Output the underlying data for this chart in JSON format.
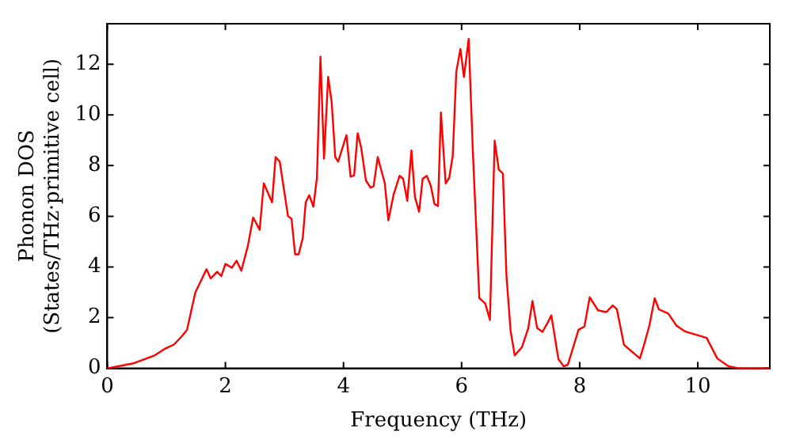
{
  "chart_data": {
    "type": "line",
    "xlabel": "Frequency (THz)",
    "ylabel": "Phonon DOS\n(States/THz·primitive cell)",
    "x": [
      0,
      0.43,
      0.8,
      0.99,
      1.13,
      1.26,
      1.35,
      1.49,
      1.68,
      1.75,
      1.86,
      1.93,
      2.0,
      2.11,
      2.19,
      2.27,
      2.38,
      2.47,
      2.58,
      2.65,
      2.79,
      2.85,
      2.92,
      3.06,
      3.12,
      3.18,
      3.24,
      3.31,
      3.36,
      3.42,
      3.49,
      3.55,
      3.61,
      3.67,
      3.74,
      3.8,
      3.86,
      3.91,
      4.05,
      4.12,
      4.18,
      4.24,
      4.3,
      4.38,
      4.46,
      4.51,
      4.58,
      4.7,
      4.76,
      4.85,
      4.95,
      5.01,
      5.08,
      5.15,
      5.21,
      5.28,
      5.34,
      5.41,
      5.48,
      5.54,
      5.6,
      5.65,
      5.73,
      5.79,
      5.85,
      5.91,
      5.98,
      6.04,
      6.12,
      6.19,
      6.3,
      6.4,
      6.48,
      6.56,
      6.63,
      6.7,
      6.76,
      6.83,
      6.9,
      7.02,
      7.13,
      7.2,
      7.28,
      7.37,
      7.46,
      7.52,
      7.64,
      7.73,
      7.8,
      7.89,
      7.98,
      8.08,
      8.17,
      8.31,
      8.45,
      8.56,
      8.63,
      8.75,
      8.91,
      9.02,
      9.09,
      9.18,
      9.27,
      9.34,
      9.5,
      9.64,
      9.78,
      10.15,
      10.33,
      10.52,
      10.7,
      11.22
    ],
    "series": [
      {
        "color": "#ff0000",
        "values": [
          0,
          0.19,
          0.51,
          0.79,
          0.94,
          1.26,
          1.52,
          2.99,
          3.91,
          3.55,
          3.81,
          3.64,
          4.12,
          3.97,
          4.25,
          3.85,
          4.83,
          5.95,
          5.47,
          7.3,
          6.55,
          8.34,
          8.16,
          6.01,
          5.9,
          4.5,
          4.5,
          5.14,
          6.55,
          6.83,
          6.38,
          7.52,
          12.3,
          8.27,
          11.5,
          10.5,
          8.34,
          8.16,
          9.2,
          7.56,
          7.62,
          9.28,
          8.7,
          7.41,
          7.13,
          7.19,
          8.34,
          7.3,
          5.84,
          6.87,
          7.6,
          7.48,
          6.61,
          8.6,
          6.76,
          6.18,
          7.48,
          7.6,
          7.19,
          6.49,
          6.4,
          10.1,
          7.3,
          7.52,
          8.38,
          11.7,
          12.6,
          11.5,
          13.0,
          8.6,
          2.77,
          2.56,
          1.91,
          8.99,
          7.84,
          7.69,
          3.64,
          1.48,
          0.51,
          0.83,
          1.59,
          2.66,
          1.59,
          1.44,
          1.81,
          2.09,
          0.36,
          0.08,
          0.15,
          0.83,
          1.52,
          1.65,
          2.81,
          2.29,
          2.22,
          2.48,
          2.33,
          0.93,
          0.61,
          0.39,
          0.93,
          1.68,
          2.77,
          2.33,
          2.16,
          1.68,
          1.46,
          1.2,
          0.39,
          0.08,
          0,
          0
        ]
      }
    ],
    "xlim": [
      0,
      11.22
    ],
    "ylim": [
      0,
      13.6
    ],
    "xticks": [
      0,
      2,
      4,
      6,
      8,
      10
    ],
    "yticks": [
      0,
      2,
      4,
      6,
      8,
      10,
      12
    ],
    "grid": false,
    "legend": false,
    "marker": "none",
    "line_style": "solid"
  }
}
